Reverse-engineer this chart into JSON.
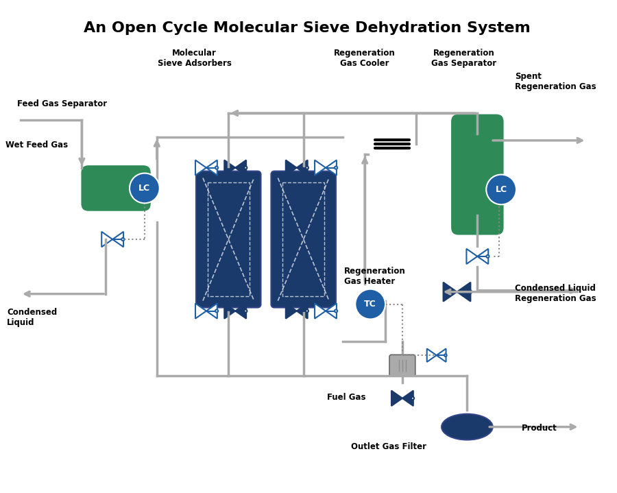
{
  "title": "An Open Cycle Molecular Sieve Dehydration System",
  "title_fontsize": 16,
  "bg_color": "#ffffff",
  "line_color": "#aaaaaa",
  "blue_dark": "#1a3a6b",
  "blue_medium": "#1f5fa6",
  "blue_circle": "#1f5fa6",
  "green_vessel": "#2e8b57",
  "text_color": "#000000",
  "labels": {
    "feed_gas_separator": "Feed Gas Separator",
    "wet_feed_gas": "Wet Feed Gas",
    "molecular_sieve": "Molecular\nSieve Adsorbers",
    "regen_cooler": "Regeneration\nGas Cooler",
    "regen_separator": "Regeneration\nGas Separator",
    "spent_regen": "Spent\nRegeneration Gas",
    "condensed_liquid_right": "Condensed Liquid",
    "condensed_liquid_left": "Condensed\nLiquid",
    "regen_heater": "Regeneration\nGas Heater",
    "regen_gas": "Regeneration Gas",
    "fuel_gas": "Fuel Gas",
    "outlet_filter": "Outlet Gas Filter",
    "product": "Product",
    "lc1": "LC",
    "lc2": "LC",
    "tc": "TC"
  }
}
